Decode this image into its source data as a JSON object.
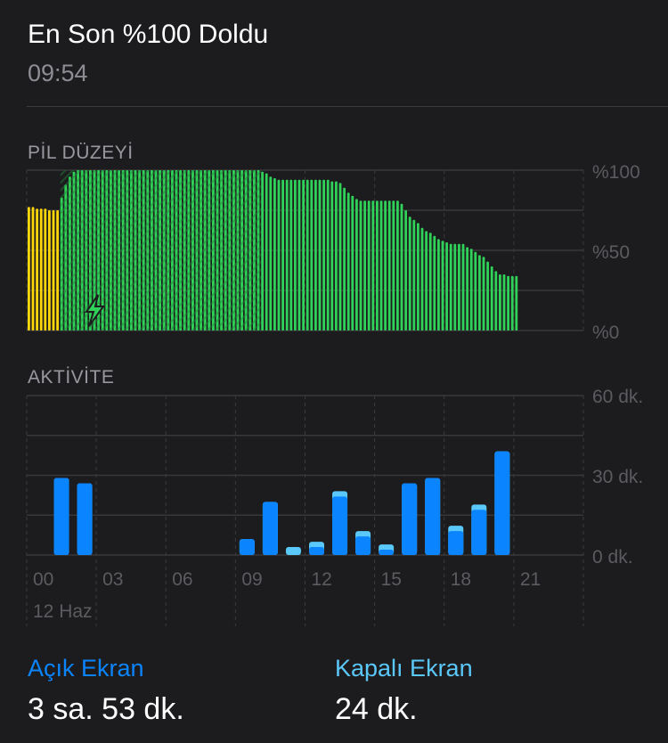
{
  "header": {
    "title": "En Son %100 Doldu",
    "time": "09:54"
  },
  "battery": {
    "label": "PİL DÜZEYİ",
    "y_ticks": [
      "%100",
      "%50",
      "%0"
    ],
    "chart_data": {
      "type": "bar",
      "ylim": [
        0,
        100
      ],
      "levels": [
        77,
        77,
        76,
        76,
        76,
        75,
        75,
        75,
        83,
        91,
        96,
        99,
        100,
        100,
        100,
        100,
        100,
        100,
        100,
        100,
        100,
        100,
        100,
        100,
        100,
        100,
        100,
        100,
        100,
        100,
        100,
        100,
        100,
        100,
        100,
        100,
        100,
        100,
        100,
        100,
        100,
        100,
        100,
        100,
        100,
        100,
        100,
        100,
        100,
        100,
        100,
        100,
        100,
        100,
        100,
        100,
        100,
        99,
        98,
        96,
        95,
        94,
        94,
        94,
        94,
        94,
        94,
        94,
        94,
        94,
        94,
        94,
        94,
        94,
        93,
        93,
        92,
        89,
        86,
        84,
        82,
        81,
        81,
        81,
        81,
        81,
        81,
        81,
        81,
        81,
        81,
        79,
        75,
        71,
        69,
        67,
        64,
        62,
        61,
        59,
        57,
        56,
        55,
        54,
        54,
        54,
        54,
        52,
        51,
        49,
        47,
        46,
        43,
        40,
        37,
        35,
        35,
        34,
        34,
        34
      ],
      "low_power_until_index": 8,
      "charging_range": [
        8,
        56
      ],
      "colors": {
        "normal": "#30d158",
        "low_power": "#ffd60a",
        "charging_hatch": "#1f5f2e"
      }
    },
    "charging_icon": "lightning-bolt-icon"
  },
  "activity": {
    "label": "AKTİVİTE",
    "y_ticks": [
      "60 dk.",
      "30 dk.",
      "0 dk."
    ],
    "x_ticks": [
      "00",
      "03",
      "06",
      "09",
      "12",
      "15",
      "18",
      "21"
    ],
    "date_label": "12 Haz",
    "chart_data": {
      "type": "bar",
      "stacked": true,
      "ylim": [
        0,
        60
      ],
      "hours": [
        1,
        2,
        9,
        10,
        11,
        12,
        13,
        14,
        15,
        16,
        17,
        18,
        19,
        20
      ],
      "series": [
        {
          "name": "Açık Ekran",
          "color": "#0a84ff",
          "values": [
            29,
            27,
            6,
            20,
            0,
            3,
            22,
            7,
            2,
            27,
            29,
            9,
            17,
            39
          ]
        },
        {
          "name": "Kapalı Ekran",
          "color": "#5ac8fa",
          "values": [
            0,
            0,
            0,
            0,
            3,
            2,
            2,
            2,
            2,
            0,
            0,
            2,
            2,
            0
          ]
        }
      ]
    }
  },
  "summary": {
    "screen_on": {
      "label": "Açık Ekran",
      "value": "3 sa. 53 dk."
    },
    "screen_off": {
      "label": "Kapalı Ekran",
      "value": "24 dk."
    }
  }
}
